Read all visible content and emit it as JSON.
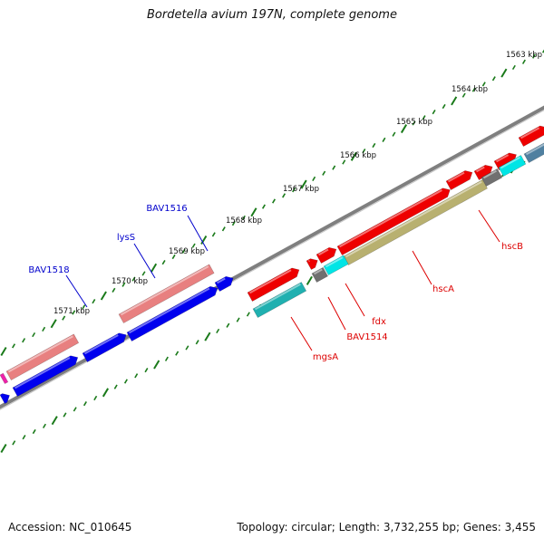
{
  "title": "Bordetella avium 197N, complete genome",
  "footer": {
    "accession": "Accession: NC_010645",
    "topology": "Topology: circular; Length: 3,732,255 bp; Genes: 3,455"
  },
  "ticks": [
    {
      "label": "1563 kbp"
    },
    {
      "label": "1564 kbp"
    },
    {
      "label": "1565 kbp"
    },
    {
      "label": "1566 kbp"
    },
    {
      "label": "1567 kbp"
    },
    {
      "label": "1568 kbp"
    },
    {
      "label": "1569 kbp"
    },
    {
      "label": "1570 kbp"
    },
    {
      "label": "1571 kbp"
    }
  ],
  "gene_labels": [
    {
      "name": "BAV1516",
      "color": "#0000cc"
    },
    {
      "name": "lysS",
      "color": "#0000cc"
    },
    {
      "name": "BAV1518",
      "color": "#0000cc"
    },
    {
      "name": "hscB",
      "color": "#dd0000"
    },
    {
      "name": "hscA",
      "color": "#dd0000"
    },
    {
      "name": "fdx",
      "color": "#dd0000"
    },
    {
      "name": "BAV1514",
      "color": "#dd0000"
    },
    {
      "name": "mgsA",
      "color": "#dd0000"
    }
  ],
  "colors": {
    "backbone": "#7f7f7f",
    "tick": "#1a7a1a",
    "forward_gene": "#ee0000",
    "reverse_gene": "#0000ee",
    "pink_gene": "#e88080",
    "cyan_gene": "#00e5e5",
    "teal_gene": "#20b0b0",
    "olive_gene": "#b8b070",
    "gray_gene": "#707070",
    "steel_gene": "#5080a0",
    "magenta_gene": "#ee22aa"
  }
}
